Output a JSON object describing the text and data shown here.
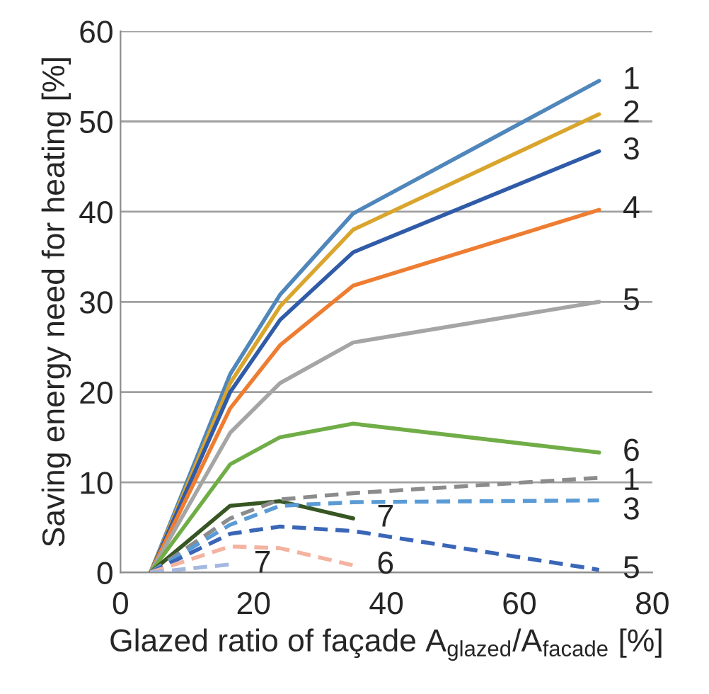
{
  "chart_data": {
    "type": "line",
    "xlabel": "Glazed ratio of façade A$_{glazed}$/A$_{facade}$ [%]",
    "ylabel": "Saving energy need for heating [%]",
    "x": [
      4.5,
      16.5,
      24,
      35,
      72
    ],
    "series": [
      {
        "name": "1",
        "color": "#4f86bb",
        "values": [
          0,
          22,
          30.8,
          39.8,
          54.5
        ]
      },
      {
        "name": "2",
        "color": "#d9a52c",
        "values": [
          0,
          21,
          29.5,
          38,
          50.8
        ]
      },
      {
        "name": "3",
        "color": "#2f5ba8",
        "values": [
          0,
          20,
          28,
          35.5,
          46.7
        ]
      },
      {
        "name": "4",
        "color": "#ee7d31",
        "values": [
          0,
          18.2,
          25.2,
          31.8,
          40.2
        ]
      },
      {
        "name": "5",
        "color": "#a5a5a5",
        "values": [
          0,
          15.5,
          21,
          25.5,
          30
        ]
      },
      {
        "name": "6",
        "color": "#70ad47",
        "values": [
          0,
          12,
          15,
          16.5,
          13.3
        ]
      },
      {
        "name": "7",
        "color": "#375623",
        "x": [
          4.5,
          16.5,
          24,
          35
        ],
        "values": [
          0,
          7.4,
          7.9,
          6.0
        ]
      },
      {
        "name": "1",
        "color": "#8c8c8c",
        "line_style": "dashed",
        "values": [
          0,
          6,
          8.1,
          8.8,
          10.5
        ]
      },
      {
        "name": "3",
        "color": "#5b9bd5",
        "line_style": "dashed",
        "values": [
          0,
          5.3,
          7.4,
          7.8,
          8.0
        ]
      },
      {
        "name": "5",
        "color": "#3a66b8",
        "line_style": "dashed",
        "values": [
          0,
          4.3,
          5.1,
          4.6,
          0.3
        ]
      },
      {
        "name": "6",
        "color": "#f4b3a0",
        "line_style": "dashed",
        "x": [
          4.5,
          16.5,
          24,
          35
        ],
        "values": [
          0,
          2.9,
          2.7,
          0.8
        ]
      },
      {
        "name": "7",
        "color": "#a4b8e0",
        "line_style": "dashed",
        "x": [
          4.5,
          16.5
        ],
        "values": [
          0,
          0.9
        ]
      }
    ],
    "xlim": [
      0,
      80
    ],
    "xticks": [
      0,
      20,
      40,
      60,
      80
    ],
    "ylim": [
      0,
      60
    ],
    "yticks": [
      0,
      10,
      20,
      30,
      40,
      50,
      60
    ],
    "grid": "y",
    "legend": false,
    "marker": "none",
    "line_style": "solid"
  }
}
